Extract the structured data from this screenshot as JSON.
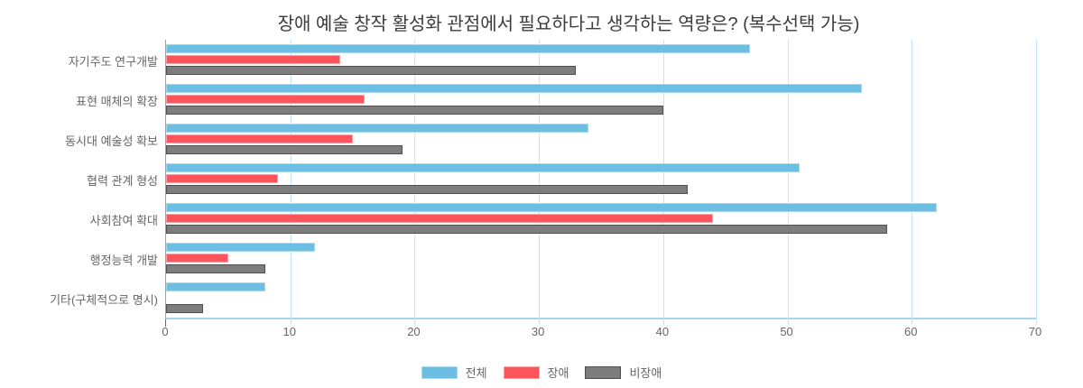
{
  "title": "장애 예술 창작 활성화 관점에서 필요하다고 생각하는 역량은? (복수선택 가능)",
  "chart_data": {
    "type": "bar",
    "orientation": "horizontal",
    "title": "장애 예술 창작 활성화 관점에서 필요하다고 생각하는 역량은? (복수선택 가능)",
    "categories": [
      "자기주도 연구개발",
      "표현 매체의 확장",
      "동시대 예술성 확보",
      "협력 관계 형성",
      "사회참여 확대",
      "행정능력 개발",
      "기타(구체적으로 명시)"
    ],
    "series": [
      {
        "name": "전체",
        "color": "#6cbee2",
        "border_color": "#a9d9ef",
        "values": [
          47,
          56,
          34,
          51,
          62,
          12,
          8
        ]
      },
      {
        "name": "장애",
        "color": "#fb545c",
        "border_color": "#fca1a6",
        "values": [
          14,
          16,
          15,
          9,
          44,
          5,
          0
        ]
      },
      {
        "name": "비장애",
        "color": "#7d7d7d",
        "border_color": "#4f4f4f",
        "values": [
          33,
          40,
          19,
          42,
          58,
          8,
          3
        ]
      }
    ],
    "xlim": [
      0,
      70
    ],
    "x_ticks": [
      0,
      10,
      20,
      30,
      40,
      50,
      60,
      70
    ],
    "grid": true,
    "legend_position": "bottom",
    "colors": {
      "gridline": "#c3e5f5",
      "axis_line": "#a5d5ec",
      "y_axis_line": "#9e9e9e",
      "tick_text": "#666666",
      "title_text": "#3c3c3c",
      "background": "#ffffff"
    }
  }
}
